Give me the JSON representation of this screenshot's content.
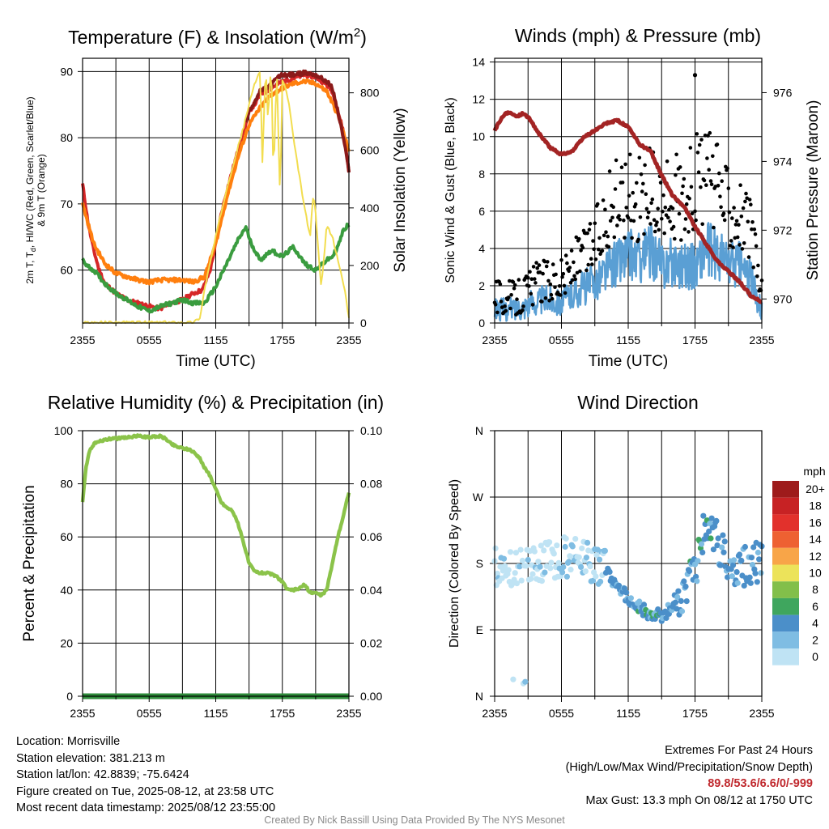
{
  "chart_data": [
    {
      "type": "line",
      "title": "Temperature (F) & Insolation (W/m²)",
      "title_main": "Temperature (F) & Insolation (W/m",
      "title_sup": "2",
      "title_tail": ")",
      "xlabel": "Time (UTC)",
      "ylabel_left_lines": [
        "2m T, T",
        "d",
        ", HI/WC (Red, Green, Scarlet/Blue)",
        "& 9m T (Orange)"
      ],
      "ylabel_right": "Solar Insolation (Yellow)",
      "x_ticks": [
        "2355",
        "0555",
        "1155",
        "1755",
        "2355"
      ],
      "x_range_hours": [
        0,
        24
      ],
      "ylim_left": [
        52,
        92
      ],
      "y_ticks_left": [
        60,
        70,
        80,
        90
      ],
      "ylim_right": [
        0,
        920
      ],
      "y_ticks_right": [
        0,
        200,
        400,
        600,
        800
      ],
      "grid": true,
      "series": [
        {
          "color": "#d62728",
          "axis": "left",
          "x": [
            0,
            0.5,
            1,
            1.5,
            2,
            3,
            4,
            5,
            6,
            7,
            8,
            9,
            10,
            10.8,
            11.5,
            12,
            12.5,
            13,
            14,
            14.7,
            15,
            15.7,
            16,
            17,
            18,
            19,
            20,
            21,
            22,
            22.5,
            23,
            23.5,
            24
          ],
          "y": [
            73,
            67,
            63,
            60,
            58,
            56.5,
            55.5,
            55,
            54.5,
            54.2,
            55,
            55.5,
            56.5,
            57,
            60,
            64,
            68.5,
            72,
            78,
            82,
            84,
            85.5,
            86.5,
            87.5,
            88.5,
            89,
            89.5,
            89.2,
            88,
            87,
            84,
            81,
            75
          ]
        },
        {
          "color": "#ff7f0e",
          "axis": "left",
          "x": [
            0,
            1,
            2,
            3,
            4,
            5,
            6,
            7,
            8,
            9,
            10,
            11,
            12,
            13,
            14,
            15,
            16,
            17,
            18,
            19,
            20,
            21,
            22,
            23,
            24
          ],
          "y": [
            70,
            64,
            61,
            59.5,
            59,
            58.5,
            58.2,
            58.5,
            58.5,
            58.5,
            58.2,
            59,
            64,
            71,
            77,
            82,
            84.5,
            86.5,
            87.5,
            88.2,
            88.5,
            88.2,
            87,
            83.5,
            78
          ]
        },
        {
          "color": "#3a9c3f",
          "axis": "left",
          "x": [
            0,
            0.5,
            1,
            2,
            3,
            4,
            5,
            6,
            7,
            8,
            9,
            10,
            11,
            12,
            13,
            14,
            14.7,
            15.2,
            16,
            17,
            18,
            19,
            20,
            21,
            22,
            22.5,
            23,
            23.5,
            24
          ],
          "y": [
            61.5,
            60.5,
            60,
            58,
            56.5,
            55.5,
            54.5,
            53.8,
            54.5,
            55,
            55.5,
            55,
            55,
            57.5,
            61,
            64.5,
            66.5,
            64,
            61.5,
            63,
            62,
            63.5,
            61,
            60,
            61.5,
            62,
            63.5,
            66,
            67
          ]
        },
        {
          "color": "#8b1a1a",
          "axis": "left",
          "x": [
            14.7,
            15,
            15.5,
            16,
            16.5,
            17,
            17.5,
            18,
            19,
            20,
            21,
            22,
            22.5,
            23,
            23.5,
            24
          ],
          "y": [
            82,
            84,
            85.5,
            87,
            87.5,
            88,
            89,
            89.5,
            89.5,
            89.8,
            89.5,
            88.5,
            87.5,
            84,
            80,
            75
          ]
        },
        {
          "color": "#f2dd4f",
          "axis": "right",
          "x": [
            0,
            1,
            2,
            3,
            4,
            5,
            6,
            7,
            8,
            9,
            10,
            10.6,
            11,
            12,
            13,
            14,
            14.5,
            15,
            15.5,
            16,
            16.2,
            16.5,
            16.7,
            17,
            17.2,
            17.5,
            17.8,
            18,
            18.2,
            18.6,
            19,
            19.5,
            20,
            20.5,
            20.8,
            21,
            21.5,
            22,
            22.5,
            23,
            23.5,
            24
          ],
          "y": [
            2,
            2,
            2,
            2,
            2,
            2,
            2,
            2,
            2,
            2,
            2,
            20,
            120,
            300,
            470,
            610,
            680,
            760,
            830,
            880,
            560,
            900,
            700,
            910,
            500,
            880,
            420,
            840,
            830,
            760,
            640,
            520,
            400,
            300,
            450,
            380,
            120,
            340,
            300,
            220,
            140,
            20
          ]
        }
      ]
    },
    {
      "type": "scatter",
      "title": "Winds (mph) & Pressure (mb)",
      "xlabel": "Time (UTC)",
      "ylabel_left": "Sonic Wind & Gust (Blue, Black)",
      "ylabel_right": "Station Pressure (Maroon)",
      "x_ticks": [
        "2355",
        "0555",
        "1155",
        "1755",
        "2355"
      ],
      "x_range_hours": [
        0,
        24
      ],
      "ylim_left": [
        0,
        14.2
      ],
      "y_ticks_left": [
        0,
        2,
        4,
        6,
        8,
        10,
        12,
        14
      ],
      "ylim_right": [
        969.3,
        977
      ],
      "y_ticks_right": [
        970,
        972,
        974,
        976
      ],
      "grid": true,
      "wind_color": "#5a9fd4",
      "gust_color": "#000000",
      "pressure_color": "#a32424",
      "wind": {
        "x": [
          0,
          1,
          2,
          3,
          4,
          5,
          6,
          7,
          8,
          9,
          10,
          11,
          12,
          13,
          14,
          15,
          16,
          17,
          18,
          19,
          20,
          21,
          22,
          23,
          24
        ],
        "y": [
          0.8,
          0.7,
          0.8,
          1.0,
          1.2,
          1.3,
          1.1,
          1.6,
          1.9,
          2.2,
          2.8,
          3.3,
          3.7,
          3.5,
          3.9,
          3.1,
          3.3,
          3.1,
          3.0,
          4.0,
          3.6,
          3.2,
          3.1,
          2.3,
          0.8
        ]
      },
      "gust": {
        "x": [
          0,
          1,
          2,
          3,
          4,
          5,
          6,
          7,
          8,
          9,
          10,
          11,
          12,
          13,
          14,
          15,
          16,
          17,
          18,
          19,
          20,
          21,
          22,
          23,
          24
        ],
        "y": [
          1.4,
          1.2,
          1.3,
          1.7,
          2.1,
          2.3,
          2.2,
          2.9,
          3.4,
          4.3,
          5.6,
          6.3,
          6.7,
          6.4,
          6.8,
          5.9,
          6.6,
          6.4,
          7.3,
          7.7,
          6.9,
          6.2,
          5.7,
          4.6,
          1.5
        ]
      },
      "max_gust_point": {
        "x": 18,
        "y": 13.3
      },
      "pressure": {
        "x": [
          0,
          0.5,
          1,
          1.5,
          2,
          2.5,
          3,
          4,
          5,
          6,
          7,
          8,
          9,
          10,
          11,
          12,
          13,
          14,
          15,
          16,
          17,
          18,
          19,
          20,
          21,
          22,
          23,
          24
        ],
        "y": [
          974.9,
          975.2,
          975.4,
          975.4,
          975.3,
          975.4,
          975.3,
          974.8,
          974.4,
          974.2,
          974.3,
          974.7,
          974.9,
          975.1,
          975.2,
          975.0,
          974.5,
          974.3,
          973.6,
          973.0,
          972.7,
          972.1,
          971.6,
          971.1,
          970.8,
          970.5,
          970.1,
          969.9
        ]
      }
    },
    {
      "type": "line",
      "title": "Relative Humidity (%) & Precipitation (in)",
      "xlabel": "",
      "ylabel": "Percent & Precipitation",
      "x_ticks": [
        "2355",
        "0555",
        "1155",
        "1755",
        "2355"
      ],
      "x_range_hours": [
        0,
        24
      ],
      "ylim_left": [
        0,
        100
      ],
      "y_ticks_left": [
        0,
        20,
        40,
        60,
        80,
        100
      ],
      "ylim_right": [
        0,
        0.1
      ],
      "y_ticks_right": [
        "0.00",
        "0.02",
        "0.04",
        "0.06",
        "0.08",
        "0.10"
      ],
      "grid": true,
      "series": [
        {
          "color": "#8bc34a",
          "axis": "left",
          "x": [
            0,
            0.3,
            0.6,
            1,
            1.5,
            2,
            2.5,
            3,
            4,
            5,
            6,
            7,
            7.5,
            8,
            8.5,
            9,
            9.5,
            10,
            10.5,
            11,
            11.5,
            12,
            12.5,
            13,
            13.5,
            14,
            14.5,
            15,
            15.5,
            16,
            16.5,
            17,
            17.5,
            18,
            18.5,
            19,
            19.5,
            20,
            20.5,
            21,
            21.5,
            22,
            22.5,
            23,
            23.5,
            24
          ],
          "y": [
            73,
            86,
            92,
            95,
            96,
            96.5,
            97,
            97,
            97.5,
            98,
            97.5,
            98,
            97,
            95,
            94,
            93.5,
            93,
            92,
            90,
            86,
            83,
            78,
            73,
            71,
            70,
            65,
            58,
            50,
            47,
            46.5,
            46.5,
            46,
            45,
            43,
            40,
            40,
            40.5,
            42,
            39,
            39,
            38,
            40,
            50,
            60,
            68,
            77
          ]
        },
        {
          "color": "#2e8b3a",
          "axis": "right",
          "x": [
            0,
            24
          ],
          "y": [
            0,
            0
          ]
        }
      ]
    },
    {
      "type": "scatter",
      "title": "Wind Direction",
      "xlabel": "",
      "ylabel": "Direction (Colored By Speed)",
      "x_ticks": [
        "2355",
        "0555",
        "1155",
        "1755",
        "2355"
      ],
      "x_range_hours": [
        0,
        24
      ],
      "y_ticks": [
        "N",
        "E",
        "S",
        "W",
        "N"
      ],
      "ylim_degrees": [
        0,
        360
      ],
      "grid": true,
      "direction": {
        "x": [
          0,
          1,
          2,
          3,
          4,
          5,
          6,
          7,
          8,
          9,
          10,
          11,
          12,
          13,
          14,
          15,
          16,
          17,
          18,
          19,
          20,
          21,
          22,
          23,
          24
        ],
        "y": [
          175,
          170,
          172,
          180,
          178,
          183,
          188,
          190,
          185,
          182,
          170,
          150,
          132,
          120,
          112,
          110,
          120,
          140,
          170,
          235,
          210,
          185,
          175,
          180,
          182
        ]
      },
      "colorbar": {
        "title": "mph",
        "labels": [
          "20+",
          "18",
          "16",
          "14",
          "12",
          "10",
          "8",
          "6",
          "4",
          "2",
          "0"
        ],
        "colors": [
          "#9e1b1b",
          "#c72224",
          "#e2312c",
          "#ee6132",
          "#f8a548",
          "#ece35a",
          "#82bf4a",
          "#3fa65e",
          "#4b8fc9",
          "#7fbde3",
          "#bfe3f4"
        ]
      }
    }
  ],
  "info": {
    "location": "Location: Morrisville",
    "elevation": "Station elevation: 381.213 m",
    "latlon": "Station lat/lon: 42.8839; -75.6424",
    "created": "Figure created on Tue, 2025-08-12, at 23:58 UTC",
    "recent": "Most recent data timestamp: 2025/08/12 23:55:00"
  },
  "extremes": {
    "heading": "Extremes For Past 24 Hours",
    "subheading": "(High/Low/Max Wind/Precipitation/Snow Depth)",
    "values": "89.8/53.6/6.6/0/-999",
    "max_gust": "Max Gust: 13.3 mph On 08/12 at 1750 UTC"
  },
  "credit": "Created By Nick Bassill Using Data Provided By The NYS Mesonet"
}
